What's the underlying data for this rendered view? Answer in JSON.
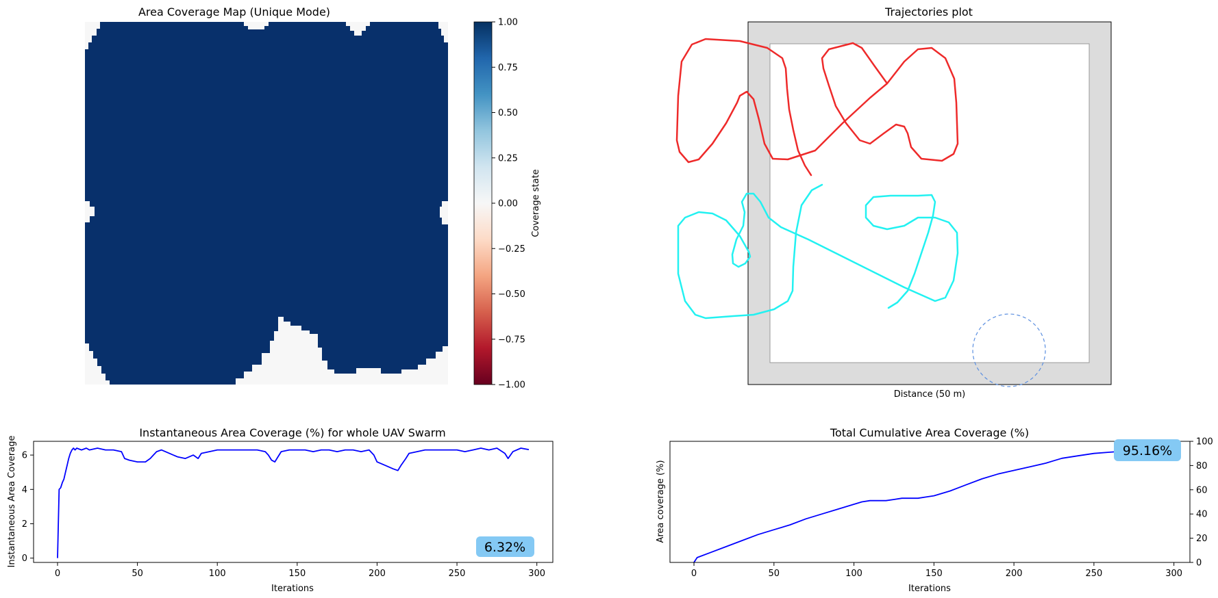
{
  "colors": {
    "coverage_dark": "#08306b",
    "coverage_empty": "#f7f7f7",
    "traj_uav1": "#ee2a2a",
    "traj_uav2": "#22f1f1",
    "sensor_circle": "#5b8fe0",
    "boundary_fill": "#dcdcdc",
    "inst_line": "#0000ff",
    "badge": "#84c9f4"
  },
  "chart_data": [
    {
      "type": "heatmap",
      "title": "Area Coverage Map (Unique Mode)",
      "colorbar": {
        "label": "Coverage state",
        "range": [
          -1.0,
          1.0
        ],
        "ticks": [
          "1.00",
          "0.75",
          "0.50",
          "0.25",
          "0.00",
          "−0.25",
          "−0.50",
          "−0.75",
          "−1.00"
        ],
        "colormap": "RdBu"
      },
      "grid_size": [
        50,
        50
      ],
      "dominant_value": 1.0,
      "uncovered_value": 0.0
    },
    {
      "type": "line",
      "title": "Trajectories plot",
      "xlabel": "Distance  (50 m)",
      "series": [
        {
          "name": "",
          "color": "#ee2a2a",
          "points": [
            [
              1184,
              256
            ],
            [
              1175,
              242
            ],
            [
              1165,
              220
            ],
            [
              1158,
              190
            ],
            [
              1152,
              160
            ],
            [
              1149,
              130
            ],
            [
              1147,
              100
            ],
            [
              1142,
              85
            ],
            [
              1120,
              70
            ],
            [
              1080,
              60
            ],
            [
              1030,
              57
            ],
            [
              1010,
              65
            ],
            [
              995,
              90
            ],
            [
              990,
              140
            ],
            [
              988,
              205
            ],
            [
              992,
              222
            ],
            [
              1005,
              237
            ],
            [
              1020,
              233
            ],
            [
              1040,
              210
            ],
            [
              1060,
              180
            ],
            [
              1076,
              150
            ],
            [
              1080,
              140
            ],
            [
              1090,
              134
            ],
            [
              1100,
              145
            ],
            [
              1108,
              175
            ],
            [
              1116,
              210
            ],
            [
              1128,
              232
            ],
            [
              1150,
              233
            ],
            [
              1190,
              220
            ],
            [
              1230,
              180
            ],
            [
              1270,
              143
            ],
            [
              1295,
              122
            ],
            [
              1320,
              90
            ],
            [
              1340,
              72
            ],
            [
              1360,
              70
            ],
            [
              1380,
              85
            ],
            [
              1393,
              115
            ],
            [
              1396,
              150
            ],
            [
              1398,
              210
            ],
            [
              1392,
              225
            ],
            [
              1375,
              235
            ],
            [
              1345,
              232
            ],
            [
              1330,
              215
            ],
            [
              1325,
              195
            ],
            [
              1320,
              185
            ],
            [
              1308,
              182
            ],
            [
              1290,
              195
            ],
            [
              1270,
              210
            ],
            [
              1255,
              205
            ],
            [
              1235,
              180
            ],
            [
              1220,
              155
            ],
            [
              1210,
              125
            ],
            [
              1202,
              100
            ],
            [
              1200,
              85
            ],
            [
              1210,
              72
            ],
            [
              1245,
              63
            ],
            [
              1258,
              70
            ],
            [
              1277,
              97
            ],
            [
              1295,
              122
            ]
          ]
        },
        {
          "name": "",
          "color": "#22f1f1",
          "points": [
            [
              1200,
              270
            ],
            [
              1185,
              278
            ],
            [
              1170,
              300
            ],
            [
              1162,
              340
            ],
            [
              1158,
              390
            ],
            [
              1157,
              425
            ],
            [
              1150,
              440
            ],
            [
              1130,
              452
            ],
            [
              1100,
              460
            ],
            [
              1070,
              462
            ],
            [
              1030,
              465
            ],
            [
              1015,
              460
            ],
            [
              1000,
              440
            ],
            [
              990,
              400
            ],
            [
              990,
              330
            ],
            [
              1000,
              318
            ],
            [
              1020,
              310
            ],
            [
              1040,
              312
            ],
            [
              1060,
              322
            ],
            [
              1080,
              345
            ],
            [
              1093,
              368
            ],
            [
              1095,
              375
            ],
            [
              1088,
              385
            ],
            [
              1078,
              390
            ],
            [
              1070,
              385
            ],
            [
              1069,
              372
            ],
            [
              1075,
              350
            ],
            [
              1085,
              330
            ],
            [
              1087,
              310
            ],
            [
              1083,
              295
            ],
            [
              1090,
              283
            ],
            [
              1100,
              283
            ],
            [
              1110,
              295
            ],
            [
              1122,
              318
            ],
            [
              1140,
              332
            ],
            [
              1180,
              350
            ],
            [
              1230,
              375
            ],
            [
              1280,
              400
            ],
            [
              1320,
              420
            ],
            [
              1365,
              440
            ],
            [
              1380,
              435
            ],
            [
              1392,
              410
            ],
            [
              1398,
              370
            ],
            [
              1397,
              340
            ],
            [
              1385,
              325
            ],
            [
              1365,
              318
            ],
            [
              1340,
              318
            ],
            [
              1320,
              330
            ],
            [
              1295,
              335
            ],
            [
              1275,
              330
            ],
            [
              1264,
              318
            ],
            [
              1264,
              300
            ],
            [
              1275,
              288
            ],
            [
              1300,
              286
            ],
            [
              1340,
              286
            ],
            [
              1360,
              285
            ],
            [
              1365,
              295
            ],
            [
              1362,
              315
            ],
            [
              1355,
              340
            ],
            [
              1345,
              370
            ],
            [
              1335,
              400
            ],
            [
              1325,
              425
            ],
            [
              1310,
              442
            ],
            [
              1297,
              450
            ]
          ]
        }
      ],
      "annotations": [
        "sensor-range-circle"
      ]
    },
    {
      "type": "line",
      "title": "Instantaneous Area Coverage (%) for whole UAV Swarm",
      "xlabel": "Iterations",
      "ylabel": "Instantaneous Area Coverage",
      "xlim": [
        -15,
        310
      ],
      "ylim": [
        -0.25,
        6.8
      ],
      "xticks": [
        0,
        50,
        100,
        150,
        200,
        250,
        300
      ],
      "yticks": [
        0,
        2,
        4,
        6
      ],
      "badge": "6.32%",
      "series": [
        {
          "name": "",
          "x": [
            0,
            1,
            2,
            3,
            4,
            5,
            6,
            7,
            8,
            9,
            10,
            11,
            12,
            15,
            18,
            20,
            25,
            30,
            35,
            40,
            42,
            45,
            50,
            55,
            58,
            60,
            62,
            65,
            70,
            75,
            80,
            85,
            88,
            90,
            95,
            100,
            105,
            110,
            115,
            120,
            125,
            130,
            132,
            134,
            136,
            138,
            140,
            145,
            150,
            155,
            160,
            165,
            170,
            175,
            180,
            185,
            190,
            195,
            198,
            200,
            205,
            210,
            213,
            215,
            218,
            220,
            225,
            230,
            235,
            240,
            245,
            250,
            255,
            260,
            265,
            270,
            275,
            280,
            282,
            285,
            290,
            295
          ],
          "y": [
            0,
            4.0,
            4.1,
            4.4,
            4.6,
            5.0,
            5.4,
            5.8,
            6.1,
            6.3,
            6.4,
            6.3,
            6.4,
            6.3,
            6.4,
            6.3,
            6.4,
            6.3,
            6.3,
            6.2,
            5.8,
            5.7,
            5.6,
            5.6,
            5.8,
            6.0,
            6.2,
            6.3,
            6.1,
            5.9,
            5.8,
            6.0,
            5.8,
            6.1,
            6.2,
            6.3,
            6.3,
            6.3,
            6.3,
            6.3,
            6.3,
            6.2,
            6.0,
            5.7,
            5.6,
            5.9,
            6.2,
            6.3,
            6.3,
            6.3,
            6.2,
            6.3,
            6.3,
            6.2,
            6.3,
            6.3,
            6.2,
            6.3,
            6.0,
            5.6,
            5.4,
            5.2,
            5.1,
            5.4,
            5.8,
            6.1,
            6.2,
            6.3,
            6.3,
            6.3,
            6.3,
            6.3,
            6.2,
            6.3,
            6.4,
            6.3,
            6.4,
            6.1,
            5.8,
            6.2,
            6.4,
            6.32
          ]
        }
      ]
    },
    {
      "type": "line",
      "title": "Total Cumulative Area Coverage (%)",
      "xlabel": "Iterations",
      "ylabel": "Area coverage (%)",
      "xlim": [
        -15,
        310
      ],
      "ylim": [
        0,
        100
      ],
      "xticks": [
        0,
        50,
        100,
        150,
        200,
        250,
        300
      ],
      "yticks": [
        0,
        20,
        40,
        60,
        80,
        100
      ],
      "yaxis_side": "right",
      "badge": "95.16%",
      "series": [
        {
          "name": "",
          "x": [
            0,
            2,
            10,
            20,
            30,
            40,
            50,
            60,
            70,
            80,
            90,
            100,
            105,
            110,
            115,
            120,
            125,
            130,
            135,
            140,
            145,
            150,
            155,
            160,
            170,
            180,
            190,
            200,
            210,
            220,
            225,
            230,
            240,
            250,
            260,
            270,
            280,
            290,
            295
          ],
          "y": [
            0,
            4,
            8,
            13,
            18,
            23,
            27,
            31,
            36,
            40,
            44,
            48,
            50,
            51,
            51,
            51,
            52,
            53,
            53,
            53,
            54,
            55,
            57,
            59,
            64,
            69,
            73,
            76,
            79,
            82,
            84,
            86,
            88,
            90,
            91,
            92,
            93,
            94,
            95.16
          ]
        }
      ]
    }
  ]
}
